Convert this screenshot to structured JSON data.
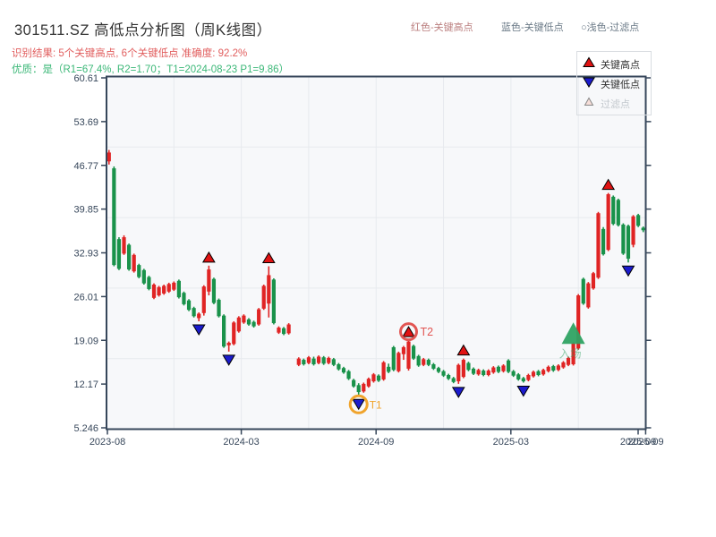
{
  "title": "301511.SZ 高低点分析图（周K线图）",
  "subtitle_result": {
    "text": "识别结果: 5个关键高点, 6个关键低点  准确度: 92.2%",
    "color": "#e15d5d"
  },
  "subtitle_quality": {
    "text": "优质：是（R1=67.4%, R2=1.70；T1=2024-08-23 P1=9.86）",
    "color": "#3cb878"
  },
  "header_legend": [
    {
      "label": "红色-关键高点",
      "color": "#bb7f7f"
    },
    {
      "label": "蓝色-关键低点",
      "color": "#6b7a87"
    },
    {
      "label": "○浅色-过滤点",
      "color": "#6b7a87"
    }
  ],
  "legend_box": {
    "items": [
      {
        "label": "关键高点",
        "marker": "up",
        "color": "#e01212",
        "text_color": "#333333"
      },
      {
        "label": "关键低点",
        "marker": "down",
        "color": "#1b1bcd",
        "text_color": "#333333"
      },
      {
        "label": "过滤点",
        "marker": "up-small",
        "color": "#f7ded9",
        "text_color": "#c3c8cd"
      }
    ]
  },
  "chart_data": {
    "type": "candlestick",
    "timeframe": "weekly",
    "title": "301511.SZ 高低点分析图（周K线图）",
    "y_ticks": [
      "60.61",
      "53.69",
      "46.77",
      "39.85",
      "32.93",
      "26.01",
      "19.09",
      "12.17",
      "5.246"
    ],
    "y_range": [
      5.246,
      60.61
    ],
    "x_ticks": [
      "2023-08",
      "2024-03",
      "2024-09",
      "2025-03",
      "2025-09",
      "2025-09"
    ],
    "grid": true,
    "colors": {
      "up": "#e02424",
      "down": "#19924a",
      "axis": "#36465a",
      "grid": "#e7eaee",
      "plot_bg": "#f7f8fa",
      "key_high": "#e01212",
      "key_low": "#1b1bcd",
      "entry": "#2fa363",
      "t1_circle": "#f0a42d",
      "t2_circle": "#e25552"
    },
    "candles": [
      [
        47.4,
        49.2,
        46.9,
        48.8
      ],
      [
        46.3,
        46.6,
        30.8,
        31.0
      ],
      [
        35.1,
        35.4,
        30.2,
        30.4
      ],
      [
        32.8,
        35.7,
        32.6,
        35.4
      ],
      [
        34.2,
        34.4,
        30.1,
        30.3
      ],
      [
        30.0,
        32.8,
        29.8,
        32.6
      ],
      [
        31.0,
        31.2,
        28.9,
        29.1
      ],
      [
        30.2,
        30.4,
        27.9,
        28.1
      ],
      [
        29.1,
        29.3,
        27.0,
        27.2
      ],
      [
        25.8,
        28.1,
        25.6,
        27.9
      ],
      [
        26.2,
        27.7,
        26.0,
        27.5
      ],
      [
        26.5,
        27.9,
        26.3,
        27.7
      ],
      [
        26.8,
        28.2,
        26.6,
        28.0
      ],
      [
        27.1,
        28.4,
        26.9,
        28.2
      ],
      [
        28.5,
        28.7,
        25.7,
        25.9
      ],
      [
        26.6,
        26.8,
        24.6,
        24.8
      ],
      [
        25.4,
        25.6,
        23.7,
        23.9
      ],
      [
        24.2,
        24.4,
        22.7,
        22.9
      ],
      [
        22.6,
        23.5,
        22.1,
        23.3
      ],
      [
        23.4,
        27.8,
        23.0,
        27.6
      ],
      [
        26.8,
        30.9,
        26.2,
        30.3
      ],
      [
        28.8,
        29.0,
        24.8,
        25.0
      ],
      [
        25.5,
        25.7,
        22.7,
        22.9
      ],
      [
        23.0,
        23.2,
        17.9,
        18.1
      ],
      [
        18.3,
        18.9,
        17.3,
        18.7
      ],
      [
        18.5,
        22.1,
        18.3,
        21.9
      ],
      [
        20.5,
        22.9,
        20.3,
        22.7
      ],
      [
        21.9,
        23.2,
        21.7,
        23.0
      ],
      [
        22.4,
        22.6,
        21.4,
        21.6
      ],
      [
        22.0,
        22.2,
        21.1,
        21.3
      ],
      [
        21.6,
        24.2,
        21.4,
        24.0
      ],
      [
        24.1,
        27.9,
        23.9,
        27.7
      ],
      [
        24.9,
        30.8,
        22.7,
        29.4
      ],
      [
        28.7,
        28.9,
        21.6,
        21.8
      ],
      [
        20.3,
        21.3,
        20.1,
        21.1
      ],
      [
        21.0,
        21.2,
        19.9,
        20.1
      ],
      [
        20.2,
        21.8,
        20.0,
        21.6
      ],
      null,
      [
        15.2,
        16.4,
        15.0,
        16.2
      ],
      [
        16.0,
        16.2,
        15.1,
        15.3
      ],
      [
        15.5,
        16.6,
        15.3,
        16.4
      ],
      [
        16.2,
        16.5,
        15.1,
        15.3
      ],
      [
        15.5,
        16.7,
        15.3,
        16.5
      ],
      [
        16.4,
        16.6,
        15.2,
        15.4
      ],
      [
        15.5,
        16.5,
        15.3,
        16.3
      ],
      [
        16.1,
        16.3,
        15.0,
        15.2
      ],
      [
        15.3,
        15.5,
        14.3,
        14.5
      ],
      [
        14.7,
        14.9,
        13.8,
        14.0
      ],
      [
        14.2,
        14.4,
        12.8,
        13.0
      ],
      [
        12.8,
        13.0,
        11.6,
        11.8
      ],
      [
        12.0,
        12.3,
        10.3,
        10.9
      ],
      [
        11.0,
        12.4,
        10.8,
        12.2
      ],
      [
        11.8,
        13.2,
        11.6,
        13.0
      ],
      [
        12.6,
        13.9,
        12.4,
        13.7
      ],
      [
        13.5,
        13.7,
        12.5,
        12.7
      ],
      [
        12.9,
        15.8,
        12.7,
        15.6
      ],
      [
        14.9,
        15.4,
        13.9,
        14.1
      ],
      [
        18.0,
        18.2,
        14.2,
        14.4
      ],
      [
        14.2,
        17.3,
        14.0,
        17.1
      ],
      [
        16.9,
        18.2,
        16.0,
        18.0
      ],
      [
        14.6,
        19.1,
        14.3,
        18.9
      ],
      [
        18.2,
        18.4,
        16.0,
        16.2
      ],
      [
        16.6,
        16.8,
        14.9,
        15.1
      ],
      [
        15.2,
        16.3,
        15.0,
        16.1
      ],
      [
        16.0,
        16.2,
        15.0,
        15.2
      ],
      [
        15.3,
        15.5,
        14.4,
        14.6
      ],
      [
        14.7,
        14.9,
        13.9,
        14.1
      ],
      [
        14.2,
        14.4,
        13.3,
        13.5
      ],
      [
        13.6,
        13.8,
        12.8,
        13.0
      ],
      [
        13.1,
        13.3,
        12.3,
        12.5
      ],
      [
        12.6,
        15.4,
        12.2,
        15.2
      ],
      [
        13.3,
        16.2,
        13.1,
        16.0
      ],
      [
        15.5,
        15.7,
        14.2,
        14.4
      ],
      [
        14.6,
        14.8,
        13.6,
        13.8
      ],
      [
        13.7,
        14.6,
        13.5,
        14.4
      ],
      [
        14.3,
        14.5,
        13.4,
        13.6
      ],
      [
        13.6,
        14.5,
        13.4,
        14.3
      ],
      [
        14.0,
        15.0,
        13.8,
        14.8
      ],
      [
        14.9,
        15.1,
        13.9,
        14.1
      ],
      [
        14.2,
        15.3,
        14.0,
        15.1
      ],
      [
        15.9,
        16.1,
        13.9,
        14.1
      ],
      [
        14.2,
        14.4,
        13.3,
        13.5
      ],
      [
        13.7,
        13.9,
        12.7,
        12.9
      ],
      [
        13.1,
        13.3,
        12.4,
        12.6
      ],
      [
        12.8,
        13.8,
        12.6,
        13.6
      ],
      [
        13.4,
        14.3,
        13.2,
        14.1
      ],
      [
        14.2,
        14.4,
        13.4,
        13.6
      ],
      [
        13.7,
        14.6,
        13.5,
        14.4
      ],
      [
        14.2,
        15.1,
        14.0,
        14.9
      ],
      [
        15.0,
        15.2,
        14.1,
        14.3
      ],
      [
        14.4,
        15.3,
        14.2,
        15.1
      ],
      [
        14.8,
        15.8,
        14.6,
        15.6
      ],
      [
        15.2,
        16.5,
        15.0,
        16.3
      ],
      [
        15.3,
        18.8,
        15.1,
        18.6
      ],
      [
        17.8,
        26.4,
        17.6,
        26.2
      ],
      [
        28.8,
        29.0,
        24.7,
        24.9
      ],
      [
        24.3,
        28.3,
        24.1,
        28.1
      ],
      [
        27.3,
        29.9,
        27.1,
        29.7
      ],
      [
        29.0,
        39.4,
        28.8,
        39.2
      ],
      [
        36.7,
        37.0,
        32.5,
        32.7
      ],
      [
        33.4,
        42.4,
        33.2,
        42.2
      ],
      [
        41.8,
        42.0,
        37.3,
        37.5
      ],
      [
        41.3,
        41.5,
        37.1,
        37.3
      ],
      [
        37.4,
        37.6,
        32.6,
        32.8
      ],
      [
        37.2,
        37.4,
        31.4,
        32.0
      ],
      [
        34.2,
        38.9,
        33.8,
        38.7
      ],
      [
        38.9,
        39.1,
        37.0,
        37.2
      ],
      [
        36.9,
        37.1,
        36.2,
        36.5
      ]
    ],
    "key_highs": [
      {
        "index": 20
      },
      {
        "index": 32
      },
      {
        "index": 60,
        "circle": "t2_circle",
        "label": "T2"
      },
      {
        "index": 71
      },
      {
        "index": 100
      }
    ],
    "key_lows": [
      {
        "index": 18
      },
      {
        "index": 24
      },
      {
        "index": 50,
        "circle": "t1_circle",
        "label": "T1"
      },
      {
        "index": 70
      },
      {
        "index": 83
      },
      {
        "index": 104
      }
    ],
    "entry_marker": {
      "index": 93,
      "label": "入场"
    }
  }
}
